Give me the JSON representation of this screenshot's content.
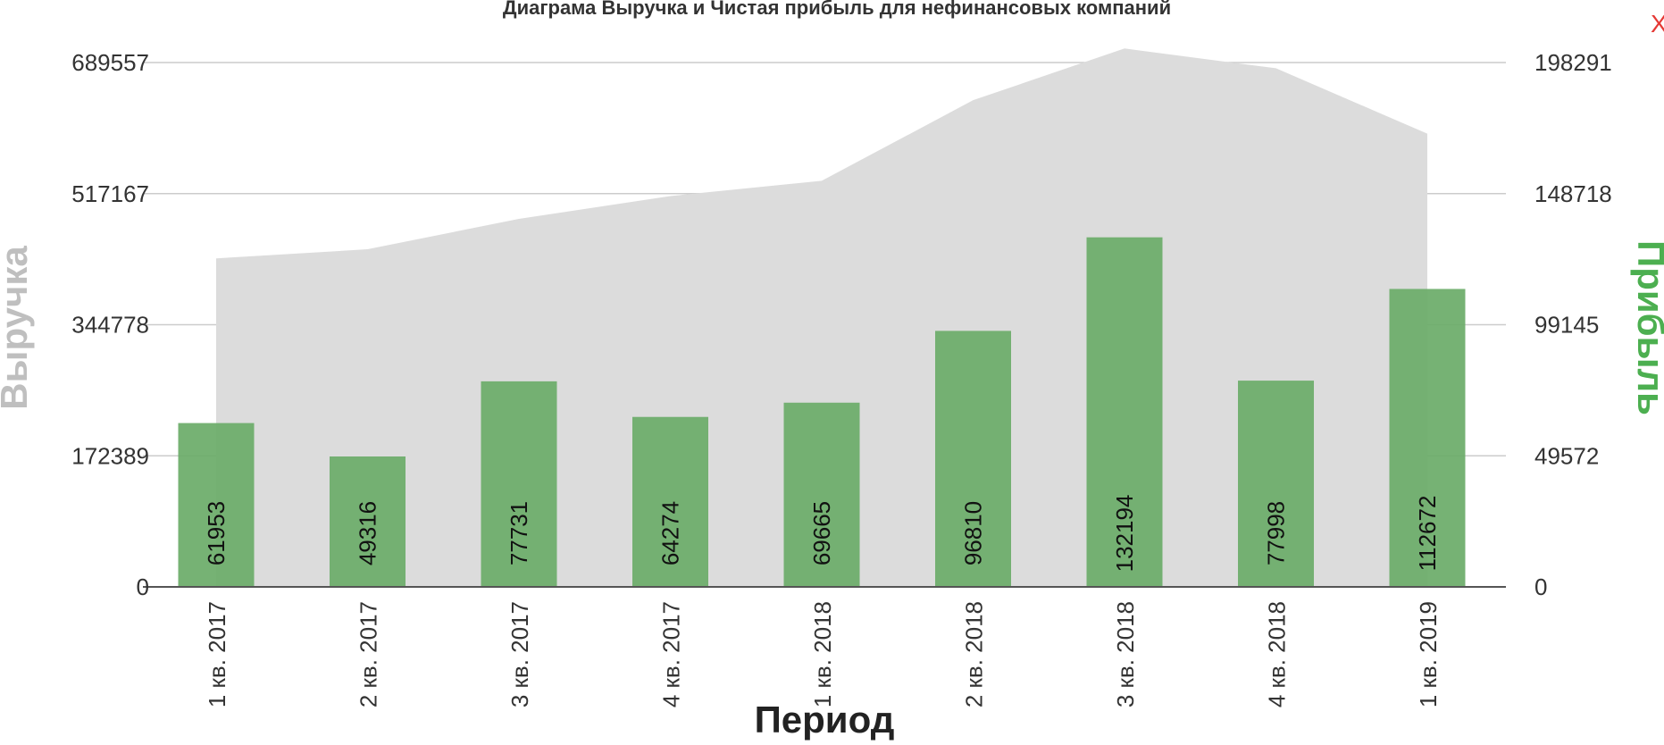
{
  "chart_data": {
    "type": "bar",
    "title": "Диаграма Выручка и Чистая прибыль для нефинансовых компаний",
    "xlabel": "Период",
    "ylabel": "Выручка",
    "ylabel_right": "Прибыль",
    "categories": [
      "1 кв. 2017",
      "2 кв. 2017",
      "3 кв. 2017",
      "4 кв. 2017",
      "1 кв. 2018",
      "2 кв. 2018",
      "3 кв. 2018",
      "4 кв. 2018",
      "1 кв. 2019"
    ],
    "series": [
      {
        "type": "area",
        "axis": "left",
        "values": [
          432000,
          444000,
          484000,
          514000,
          534000,
          640000,
          708000,
          682000,
          596000
        ]
      },
      {
        "type": "bar",
        "axis": "right",
        "values": [
          61953,
          49316,
          77731,
          64274,
          69665,
          96810,
          132194,
          77998,
          112672
        ]
      }
    ],
    "y_left_ticks": [
      "0",
      "172389",
      "344778",
      "517167",
      "689557"
    ],
    "y_right_ticks": [
      "0",
      "49572",
      "99145",
      "148718",
      "198291"
    ],
    "ylim_left": [
      0,
      689557
    ],
    "ylim_right": [
      0,
      198291
    ],
    "grid": true,
    "colors": {
      "area": "#dcdcdc",
      "bar": "#6aab68",
      "right_axis_title": "#4caf50",
      "left_axis_title": "#bfbfbf",
      "grid": "#cccccc"
    }
  },
  "close_button": {
    "label": "X",
    "color": "#e53935"
  }
}
